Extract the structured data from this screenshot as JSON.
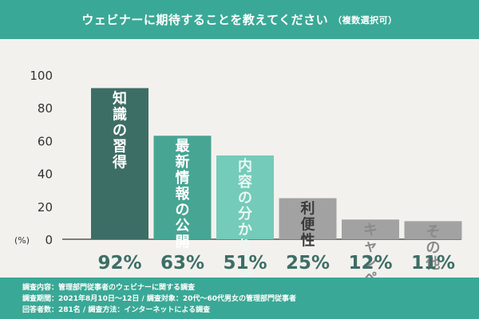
{
  "header": {
    "title": "ウェビナーに期待することを教えてください",
    "subtitle": "（複数選択可）"
  },
  "chart_data": {
    "type": "bar",
    "categories": [
      "知識の習得",
      "最新情報の公開",
      "内容の分かりやすさ",
      "利便性",
      "キャンペーン",
      "その他"
    ],
    "values": [
      92,
      63,
      51,
      25,
      12,
      11
    ],
    "value_labels": [
      "92%",
      "63%",
      "51%",
      "25%",
      "12%",
      "11%"
    ],
    "ylim": [
      0,
      100
    ],
    "yticks": [
      "0",
      "20",
      "40",
      "60",
      "80",
      "100"
    ],
    "unit_label": "(%)",
    "bar_colors": [
      "#3d6e66",
      "#47a593",
      "#74cbb9",
      "#a2a2a2",
      "#a2a2a2",
      "#a2a2a2"
    ],
    "label_colors": [
      "#ffffff",
      "#ffffff",
      "#e9f8f4",
      "#3a3a3a",
      "#8a8a8a",
      "#8a8a8a"
    ],
    "value_color": "#3d6e66",
    "axis_color": "#555555"
  },
  "footer": {
    "lines": [
      "調査内容：管理部門従事者のウェビナーに関する調査",
      "調査期間：2021年8月10日〜12日 / 調査対象：20代〜60代男女の管理部門従事者",
      "回答者数：281名 / 調査方法：インターネットによる調査"
    ]
  }
}
